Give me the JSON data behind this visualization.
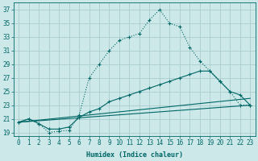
{
  "xlabel": "Humidex (Indice chaleur)",
  "bg_color": "#cce8e8",
  "grid_color": "#aacccc",
  "line_color": "#006666",
  "xlim": [
    -0.5,
    23.5
  ],
  "ylim": [
    18.5,
    38.0
  ],
  "xticks": [
    0,
    1,
    2,
    3,
    4,
    5,
    6,
    7,
    8,
    9,
    10,
    11,
    12,
    13,
    14,
    15,
    16,
    17,
    18,
    19,
    20,
    21,
    22,
    23
  ],
  "yticks": [
    19,
    21,
    23,
    25,
    27,
    29,
    31,
    33,
    35,
    37
  ],
  "line1_x": [
    0,
    1,
    2,
    3,
    4,
    5,
    6,
    7,
    8,
    9,
    10,
    11,
    12,
    13,
    14,
    15,
    16,
    17,
    18,
    19,
    20,
    21,
    22,
    23
  ],
  "line1_y": [
    20.5,
    21.0,
    20.3,
    19.0,
    19.2,
    19.3,
    21.5,
    27.0,
    29.0,
    31.0,
    32.5,
    33.0,
    33.5,
    35.5,
    37.0,
    35.0,
    34.5,
    31.5,
    29.5,
    28.0,
    26.5,
    25.0,
    23.0,
    23.0
  ],
  "line2_x": [
    0,
    1,
    2,
    3,
    4,
    5,
    6,
    7,
    8,
    9,
    10,
    11,
    12,
    13,
    14,
    15,
    16,
    17,
    18,
    19,
    20,
    21,
    22,
    23
  ],
  "line2_y": [
    20.5,
    21.0,
    20.3,
    19.5,
    19.5,
    19.8,
    21.2,
    22.0,
    22.5,
    23.5,
    24.0,
    24.5,
    25.0,
    25.5,
    26.0,
    26.5,
    27.0,
    27.5,
    28.0,
    28.0,
    26.5,
    25.0,
    24.5,
    23.0
  ],
  "line3_x": [
    0,
    23
  ],
  "line3_y": [
    20.5,
    23.0
  ],
  "line4_x": [
    0,
    23
  ],
  "line4_y": [
    20.5,
    24.0
  ],
  "tick_fontsize": 5.5,
  "xlabel_fontsize": 6.0
}
